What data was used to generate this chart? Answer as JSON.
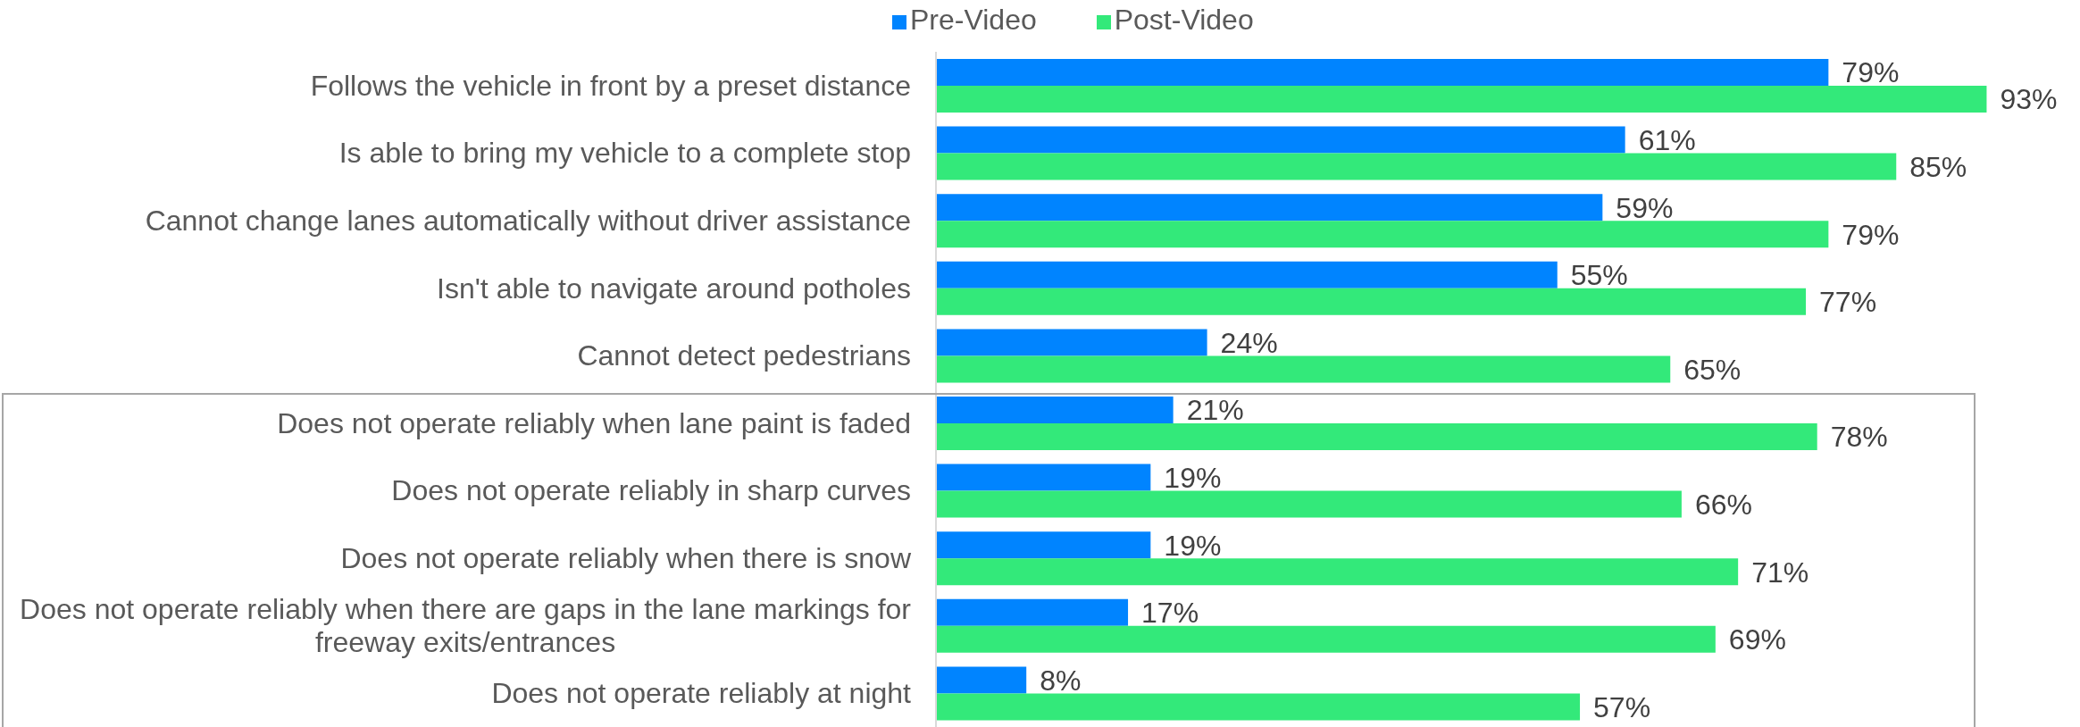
{
  "chart_data": {
    "type": "bar",
    "orientation": "horizontal",
    "categories": [
      "Follows the vehicle in front by a preset distance",
      "Is able to bring my vehicle to a complete stop",
      "Cannot change lanes automatically without driver assistance",
      "Isn't able to navigate around potholes",
      "Cannot detect pedestrians",
      "Does not operate reliably when lane paint is faded",
      "Does not operate reliably in sharp curves",
      "Does not operate reliably when there is snow",
      "Does not operate reliably when there are gaps in the lane markings for freeway exits/entrances",
      "Does not operate reliably at night"
    ],
    "series": [
      {
        "name": "Pre-Video",
        "color": "#0084ff",
        "values": [
          79,
          61,
          59,
          55,
          24,
          21,
          19,
          19,
          17,
          8
        ],
        "value_labels": [
          "79%",
          "61%",
          "59%",
          "55%",
          "24%",
          "21%",
          "19%",
          "19%",
          "17%",
          "8%"
        ]
      },
      {
        "name": "Post-Video",
        "color": "#33e97a",
        "values": [
          93,
          85,
          79,
          77,
          65,
          78,
          66,
          71,
          69,
          57
        ],
        "value_labels": [
          "93%",
          "85%",
          "79%",
          "77%",
          "65%",
          "78%",
          "66%",
          "71%",
          "69%",
          "57%"
        ]
      }
    ],
    "tick_labels": "y",
    "legend": "top"
  }
}
